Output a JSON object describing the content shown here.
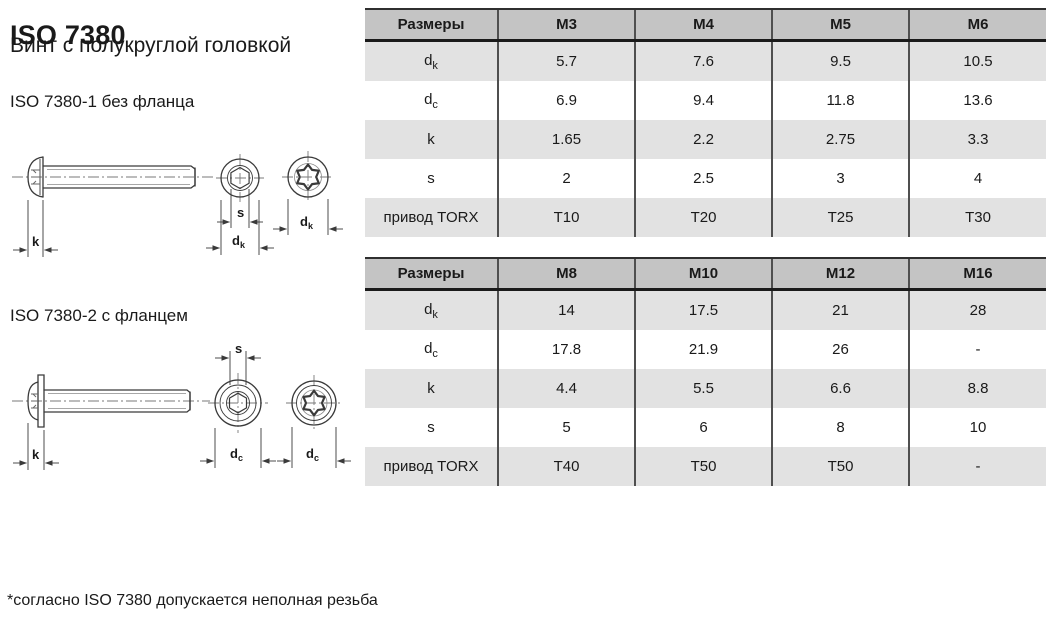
{
  "page": {
    "title": "ISO 7380",
    "subtitle": "Винт с полукруглой головкой",
    "section1_label": "ISO 7380-1 без фланца",
    "section2_label": "ISO 7380-2 с фланцем",
    "footnote": "*согласно ISO 7380 допускается неполная резьба"
  },
  "drawings": {
    "k_label": "k",
    "s_label": "s",
    "d_base": "d",
    "sub_k": "k",
    "sub_c": "c"
  },
  "tables": [
    {
      "header": [
        "Размеры",
        "M3",
        "M4",
        "M5",
        "M6"
      ],
      "rows": [
        {
          "label_base": "d",
          "label_sub": "k",
          "values": [
            "5.7",
            "7.6",
            "9.5",
            "10.5"
          ]
        },
        {
          "label_base": "d",
          "label_sub": "c",
          "values": [
            "6.9",
            "9.4",
            "11.8",
            "13.6"
          ]
        },
        {
          "label_base": "k",
          "label_sub": "",
          "values": [
            "1.65",
            "2.2",
            "2.75",
            "3.3"
          ]
        },
        {
          "label_base": "s",
          "label_sub": "",
          "values": [
            "2",
            "2.5",
            "3",
            "4"
          ]
        },
        {
          "label_base": "привод TORX",
          "label_sub": "",
          "values": [
            "T10",
            "T20",
            "T25",
            "T30"
          ]
        }
      ]
    },
    {
      "header": [
        "Размеры",
        "M8",
        "M10",
        "M12",
        "M16"
      ],
      "rows": [
        {
          "label_base": "d",
          "label_sub": "k",
          "values": [
            "14",
            "17.5",
            "21",
            "28"
          ]
        },
        {
          "label_base": "d",
          "label_sub": "c",
          "values": [
            "17.8",
            "21.9",
            "26",
            "-"
          ]
        },
        {
          "label_base": "k",
          "label_sub": "",
          "values": [
            "4.4",
            "5.5",
            "6.6",
            "8.8"
          ]
        },
        {
          "label_base": "s",
          "label_sub": "",
          "values": [
            "5",
            "6",
            "8",
            "10"
          ]
        },
        {
          "label_base": "привод TORX",
          "label_sub": "",
          "values": [
            "T40",
            "T50",
            "T50",
            "-"
          ]
        }
      ]
    }
  ],
  "colors": {
    "header_bg": "#c4c4c4",
    "stripe_bg": "#e2e2e2",
    "divider": "#4f4f4f",
    "border_dark": "#1a1a1a"
  }
}
